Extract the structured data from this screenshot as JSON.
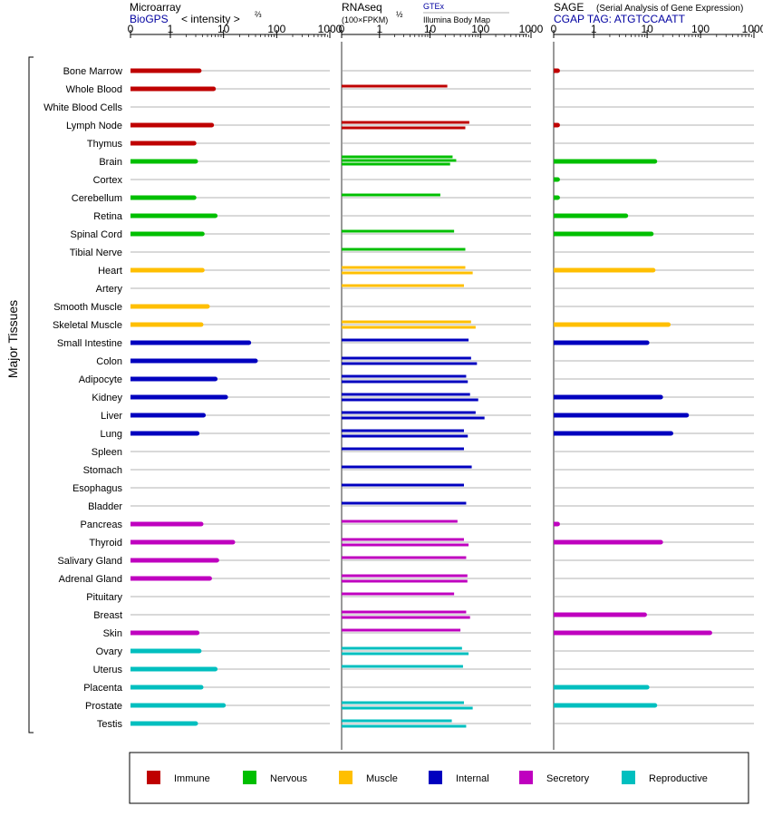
{
  "header": {
    "microarray_title": "Microarray",
    "microarray_source": "BioGPS",
    "microarray_scale_text": "< intensity >",
    "microarray_scale_exp": "⅔",
    "rnaseq_title": "RNAseq",
    "rnaseq_unit": "(100×FPKM)",
    "rnaseq_unit_exp": "½",
    "rnaseq_source_1": "GTEx",
    "rnaseq_source_2": "Illumina Body Map",
    "sage_title": "SAGE",
    "sage_subtitle": "(Serial Analysis of Gene Expression)",
    "sage_tag": "CGAP TAG: ATGTCCAATT"
  },
  "y_group_label": "Major Tissues",
  "colors": {
    "Immune": "#bf0000",
    "Nervous": "#00bf00",
    "Muscle": "#ffbf00",
    "Internal": "#0000bf",
    "Secretory": "#bf00bf",
    "Reproductive": "#00bfbf"
  },
  "legend": [
    "Immune",
    "Nervous",
    "Muscle",
    "Internal",
    "Secretory",
    "Reproductive"
  ],
  "chart_data": {
    "type": "bar",
    "orientation": "horizontal",
    "axis_ticks": [
      "0",
      "1",
      "10",
      "100",
      "1000"
    ],
    "xlim": [
      0,
      1000
    ],
    "categories": [
      "Bone Marrow",
      "Whole Blood",
      "White Blood Cells",
      "Lymph Node",
      "Thymus",
      "Brain",
      "Cortex",
      "Cerebellum",
      "Retina",
      "Spinal Cord",
      "Tibial Nerve",
      "Heart",
      "Artery",
      "Smooth Muscle",
      "Skeletal Muscle",
      "Small Intestine",
      "Colon",
      "Adipocyte",
      "Kidney",
      "Liver",
      "Lung",
      "Spleen",
      "Stomach",
      "Esophagus",
      "Bladder",
      "Pancreas",
      "Thyroid",
      "Salivary Gland",
      "Adrenal Gland",
      "Pituitary",
      "Breast",
      "Skin",
      "Ovary",
      "Uterus",
      "Placenta",
      "Prostate",
      "Testis"
    ],
    "category_group": [
      "Immune",
      "Immune",
      "Immune",
      "Immune",
      "Immune",
      "Nervous",
      "Nervous",
      "Nervous",
      "Nervous",
      "Nervous",
      "Nervous",
      "Muscle",
      "Muscle",
      "Muscle",
      "Muscle",
      "Internal",
      "Internal",
      "Internal",
      "Internal",
      "Internal",
      "Internal",
      "Internal",
      "Internal",
      "Internal",
      "Internal",
      "Secretory",
      "Secretory",
      "Secretory",
      "Secretory",
      "Secretory",
      "Secretory",
      "Secretory",
      "Reproductive",
      "Reproductive",
      "Reproductive",
      "Reproductive",
      "Reproductive"
    ],
    "panels": [
      {
        "name": "Microarray",
        "values": [
          [
            3.5
          ],
          [
            6.5
          ],
          [],
          [
            6
          ],
          [
            2.8
          ],
          [
            3
          ],
          [],
          [
            2.8
          ],
          [
            7
          ],
          [
            4
          ],
          [],
          [
            4
          ],
          [],
          [
            5
          ],
          [
            3.8
          ],
          [
            30
          ],
          [
            40
          ],
          [
            7
          ],
          [
            11
          ],
          [
            4.2
          ],
          [
            3.2
          ],
          [],
          [],
          [],
          [],
          [
            3.8
          ],
          [
            15
          ],
          [
            7.5
          ],
          [
            5.5
          ],
          [],
          [],
          [
            3.2
          ],
          [
            3.5
          ],
          [
            7
          ],
          [
            3.8
          ],
          [
            10
          ],
          [
            3
          ]
        ]
      },
      {
        "name": "RNAseq",
        "values": [
          [],
          [
            22
          ],
          [],
          [
            60,
            50
          ],
          [],
          [
            28,
            33,
            25
          ],
          [],
          [
            16
          ],
          [],
          [
            30
          ],
          [
            50
          ],
          [
            50,
            70
          ],
          [
            47
          ],
          [],
          [
            65,
            80
          ],
          [
            58
          ],
          [
            65,
            85
          ],
          [
            52,
            56
          ],
          [
            62,
            90
          ],
          [
            80,
            120
          ],
          [
            47,
            56
          ],
          [
            47
          ],
          [
            67
          ],
          [
            47
          ],
          [
            52
          ],
          [
            35
          ],
          [
            47,
            58
          ],
          [
            52
          ],
          [
            55,
            55
          ],
          [
            30
          ],
          [
            52,
            62
          ],
          [
            40
          ],
          [
            43,
            58
          ],
          [
            45
          ],
          [],
          [
            47,
            70
          ],
          [
            27,
            52
          ]
        ]
      },
      {
        "name": "SAGE",
        "values": [
          [
            0.1
          ],
          [],
          [],
          [
            0.1
          ],
          [],
          [
            14
          ],
          [
            0.1
          ],
          [
            0.1
          ],
          [
            4
          ],
          [
            12
          ],
          [],
          [
            13
          ],
          [],
          [],
          [
            25
          ],
          [
            10
          ],
          [],
          [],
          [
            18
          ],
          [
            55
          ],
          [
            28
          ],
          [],
          [],
          [],
          [],
          [
            0.1
          ],
          [
            18
          ],
          [],
          [],
          [],
          [
            9
          ],
          [
            150
          ],
          [],
          [],
          [
            10
          ],
          [
            14
          ],
          []
        ]
      }
    ]
  }
}
